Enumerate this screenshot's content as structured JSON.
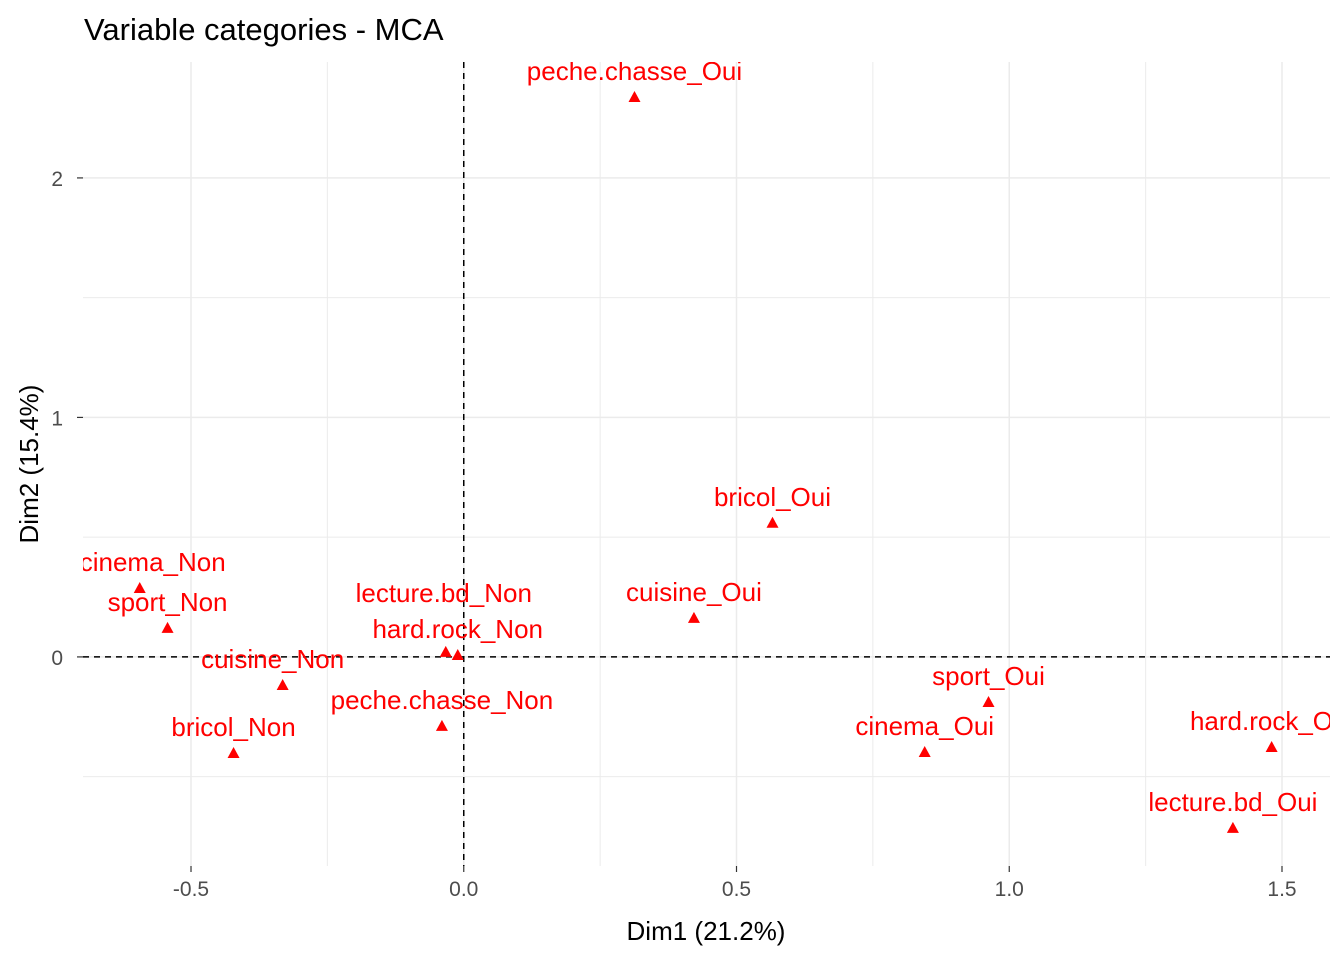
{
  "chart_data": {
    "type": "scatter",
    "title": "Variable categories - MCA",
    "xlabel": "Dim1 (21.2%)",
    "ylabel": "Dim2 (15.4%)",
    "xlim": [
      -0.698,
      1.588
    ],
    "ylim": [
      -0.873,
      2.484
    ],
    "xticks": [
      -0.5,
      0.0,
      0.5,
      1.0,
      1.5
    ],
    "xtick_labels": [
      "-0.5",
      "0.0",
      "0.5",
      "1.0",
      "1.5"
    ],
    "yticks": [
      0,
      1,
      2
    ],
    "ytick_labels": [
      "0",
      "1",
      "2"
    ],
    "grid": true,
    "point_color": "#ff0000",
    "marker": "triangle",
    "points": [
      {
        "label": "peche.chasse_Oui",
        "x": 0.313,
        "y": 2.338
      },
      {
        "label": "bricol_Oui",
        "x": 0.566,
        "y": 0.56
      },
      {
        "label": "cuisine_Oui",
        "x": 0.422,
        "y": 0.163
      },
      {
        "label": "sport_Oui",
        "x": 0.962,
        "y": -0.188
      },
      {
        "label": "cinema_Oui",
        "x": 0.845,
        "y": -0.397
      },
      {
        "label": "hard.rock_Oui",
        "x": 1.481,
        "y": -0.376
      },
      {
        "label": "lecture.bd_Oui",
        "x": 1.41,
        "y": -0.714
      },
      {
        "label": "cinema_Non",
        "x": -0.594,
        "y": 0.288
      },
      {
        "label": "sport_Non",
        "x": -0.543,
        "y": 0.121
      },
      {
        "label": "cuisine_Non",
        "x": -0.332,
        "y": -0.117
      },
      {
        "label": "bricol_Non",
        "x": -0.422,
        "y": -0.401
      },
      {
        "label": "lecture.bd_Non",
        "x": -0.033,
        "y": 0.021
      },
      {
        "label": "hard.rock_Non",
        "x": -0.011,
        "y": 0.008
      },
      {
        "label": "peche.chasse_Non",
        "x": -0.04,
        "y": -0.288
      }
    ]
  }
}
